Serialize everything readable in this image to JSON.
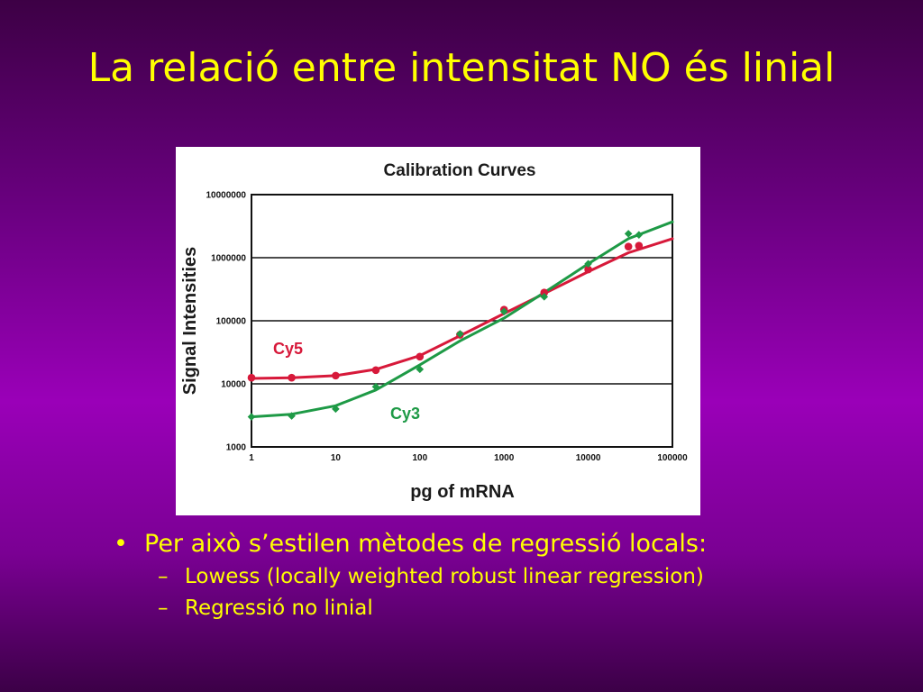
{
  "slide": {
    "title": "La relació entre intensitat NO és linial",
    "bullets": [
      {
        "text": "Per això s’estilen mètodes de regressió locals:",
        "sub": [
          "Lowess (locally weighted robust linear regression)",
          "Regressió no linial"
        ]
      }
    ]
  },
  "chart_data": {
    "type": "scatter",
    "title": "Calibration Curves",
    "xlabel": "pg of mRNA",
    "ylabel": "Signal Intensities",
    "x_scale": "log",
    "y_scale": "log",
    "xlim": [
      1,
      100000
    ],
    "ylim": [
      1000,
      10000000
    ],
    "x_ticks": [
      "1",
      "10",
      "100",
      "1000",
      "10000",
      "100000"
    ],
    "y_ticks": [
      "1000",
      "10000",
      "100000",
      "1000000",
      "10000000"
    ],
    "grid": "horizontal",
    "series": [
      {
        "name": "Cy5",
        "color": "#d7193a",
        "points": [
          {
            "x": 1,
            "y": 12500
          },
          {
            "x": 3,
            "y": 12500
          },
          {
            "x": 10,
            "y": 13500
          },
          {
            "x": 30,
            "y": 16500
          },
          {
            "x": 100,
            "y": 27000
          },
          {
            "x": 300,
            "y": 60000
          },
          {
            "x": 1000,
            "y": 150000
          },
          {
            "x": 3000,
            "y": 280000
          },
          {
            "x": 10000,
            "y": 650000
          },
          {
            "x": 30000,
            "y": 1500000
          },
          {
            "x": 40000,
            "y": 1550000
          }
        ],
        "fit": [
          [
            1,
            12200
          ],
          [
            3,
            12500
          ],
          [
            10,
            13500
          ],
          [
            30,
            17000
          ],
          [
            100,
            28000
          ],
          [
            300,
            58000
          ],
          [
            1000,
            130000
          ],
          [
            3000,
            270000
          ],
          [
            10000,
            600000
          ],
          [
            30000,
            1200000
          ],
          [
            100000,
            2000000
          ]
        ]
      },
      {
        "name": "Cy3",
        "color": "#1e9a46",
        "points": [
          {
            "x": 1,
            "y": 3000
          },
          {
            "x": 3,
            "y": 3100
          },
          {
            "x": 10,
            "y": 4000
          },
          {
            "x": 30,
            "y": 9000
          },
          {
            "x": 100,
            "y": 17000
          },
          {
            "x": 300,
            "y": 62000
          },
          {
            "x": 1000,
            "y": 140000
          },
          {
            "x": 3000,
            "y": 240000
          },
          {
            "x": 10000,
            "y": 800000
          },
          {
            "x": 30000,
            "y": 2400000
          },
          {
            "x": 40000,
            "y": 2300000
          }
        ],
        "fit": [
          [
            1,
            3000
          ],
          [
            3,
            3300
          ],
          [
            10,
            4500
          ],
          [
            30,
            8000
          ],
          [
            100,
            20000
          ],
          [
            300,
            48000
          ],
          [
            1000,
            110000
          ],
          [
            3000,
            280000
          ],
          [
            10000,
            800000
          ],
          [
            30000,
            2000000
          ],
          [
            100000,
            3700000
          ]
        ]
      }
    ]
  }
}
